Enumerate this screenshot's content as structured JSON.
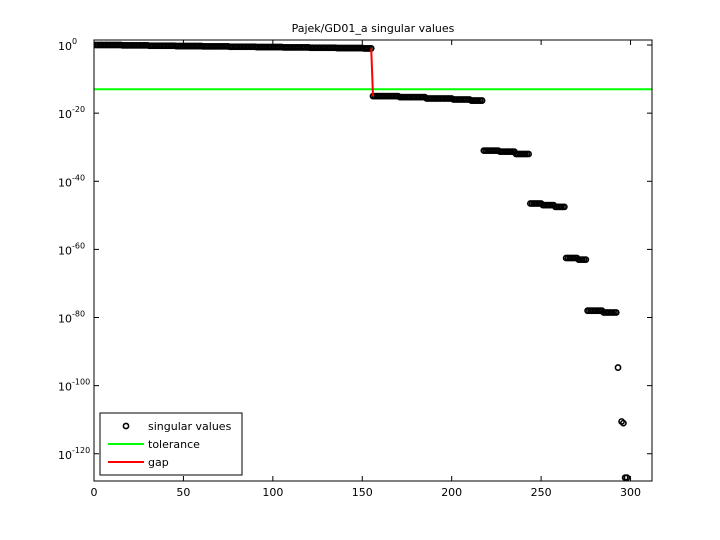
{
  "chart_data": {
    "type": "scatter",
    "title": "Pajek/GD01_a singular values",
    "xlim": [
      0,
      312
    ],
    "xticks": [
      0,
      50,
      100,
      150,
      200,
      250,
      300
    ],
    "ylim": [
      1e-128,
      30
    ],
    "log_y": true,
    "yticks": [
      {
        "value": 1,
        "label": "10",
        "exponent": "0"
      },
      {
        "value": 1e-20,
        "label": "10",
        "exponent": "-20"
      },
      {
        "value": 1e-40,
        "label": "10",
        "exponent": "-40"
      },
      {
        "value": 1e-60,
        "label": "10",
        "exponent": "-60"
      },
      {
        "value": 1e-80,
        "label": "10",
        "exponent": "-80"
      },
      {
        "value": 1e-100,
        "label": "10",
        "exponent": "-100"
      },
      {
        "value": 1e-120,
        "label": "10",
        "exponent": "-120"
      }
    ],
    "legend": "lower left",
    "series": [
      {
        "name": "singular values",
        "color": "#000000",
        "marker": "circle",
        "x": [
          1,
          2,
          3,
          4,
          5,
          6,
          7,
          8,
          9,
          10,
          11,
          12,
          13,
          14,
          15,
          16,
          17,
          18,
          19,
          20,
          21,
          22,
          23,
          24,
          25,
          26,
          27,
          28,
          29,
          30,
          31,
          32,
          33,
          34,
          35,
          36,
          37,
          38,
          39,
          40,
          41,
          42,
          43,
          44,
          45,
          46,
          47,
          48,
          49,
          50,
          51,
          52,
          53,
          54,
          55,
          56,
          57,
          58,
          59,
          60,
          61,
          62,
          63,
          64,
          65,
          66,
          67,
          68,
          69,
          70,
          71,
          72,
          73,
          74,
          75,
          76,
          77,
          78,
          79,
          80,
          81,
          82,
          83,
          84,
          85,
          86,
          87,
          88,
          89,
          90,
          91,
          92,
          93,
          94,
          95,
          96,
          97,
          98,
          99,
          100,
          101,
          102,
          103,
          104,
          105,
          106,
          107,
          108,
          109,
          110,
          111,
          112,
          113,
          114,
          115,
          116,
          117,
          118,
          119,
          120,
          121,
          122,
          123,
          124,
          125,
          126,
          127,
          128,
          129,
          130,
          131,
          132,
          133,
          134,
          135,
          136,
          137,
          138,
          139,
          140,
          141,
          142,
          143,
          144,
          145,
          146,
          147,
          148,
          149,
          150,
          151,
          152,
          153,
          154,
          155,
          156,
          157,
          158,
          159,
          160,
          161,
          162,
          163,
          164,
          165,
          166,
          167,
          168,
          169,
          170,
          171,
          172,
          173,
          174,
          175,
          176,
          177,
          178,
          179,
          180,
          181,
          182,
          183,
          184,
          185,
          186,
          187,
          188,
          189,
          190,
          191,
          192,
          193,
          194,
          195,
          196,
          197,
          198,
          199,
          200,
          201,
          202,
          203,
          204,
          205,
          206,
          207,
          208,
          209,
          210,
          211,
          212,
          213,
          214,
          215,
          216,
          217,
          218,
          219,
          220,
          221,
          222,
          223,
          224,
          225,
          226,
          227,
          228,
          229,
          230,
          231,
          232,
          233,
          234,
          235,
          236,
          237,
          238,
          239,
          240,
          241,
          242,
          243,
          244,
          245,
          246,
          247,
          248,
          249,
          250,
          251,
          252,
          253,
          254,
          255,
          256,
          257,
          258,
          259,
          260,
          261,
          262,
          263,
          264,
          265,
          266,
          267,
          268,
          269,
          270,
          271,
          272,
          273,
          274,
          275,
          276,
          277,
          278,
          279,
          280,
          281,
          282,
          283,
          284,
          285,
          286,
          287,
          288,
          289,
          290,
          291,
          292,
          293,
          295,
          296,
          297,
          298
        ],
        "values": [
          1,
          1,
          1,
          1,
          1,
          1,
          1,
          1,
          1,
          1,
          1,
          1,
          1,
          1,
          1,
          0.8,
          0.8,
          0.8,
          0.8,
          0.8,
          0.8,
          0.8,
          0.8,
          0.8,
          0.8,
          0.8,
          0.8,
          0.8,
          0.8,
          0.8,
          0.63,
          0.63,
          0.63,
          0.63,
          0.63,
          0.63,
          0.63,
          0.63,
          0.63,
          0.63,
          0.63,
          0.63,
          0.63,
          0.63,
          0.63,
          0.5,
          0.5,
          0.5,
          0.5,
          0.5,
          0.5,
          0.5,
          0.5,
          0.5,
          0.5,
          0.5,
          0.5,
          0.5,
          0.5,
          0.5,
          0.4,
          0.4,
          0.4,
          0.4,
          0.4,
          0.4,
          0.4,
          0.4,
          0.4,
          0.4,
          0.4,
          0.4,
          0.4,
          0.4,
          0.4,
          0.32,
          0.32,
          0.32,
          0.32,
          0.32,
          0.32,
          0.32,
          0.32,
          0.32,
          0.32,
          0.32,
          0.32,
          0.32,
          0.32,
          0.32,
          0.25,
          0.25,
          0.25,
          0.25,
          0.25,
          0.25,
          0.25,
          0.25,
          0.25,
          0.25,
          0.25,
          0.25,
          0.25,
          0.25,
          0.25,
          0.2,
          0.2,
          0.2,
          0.2,
          0.2,
          0.2,
          0.2,
          0.2,
          0.2,
          0.2,
          0.2,
          0.2,
          0.2,
          0.2,
          0.2,
          0.16,
          0.16,
          0.16,
          0.16,
          0.16,
          0.16,
          0.16,
          0.16,
          0.16,
          0.16,
          0.16,
          0.16,
          0.16,
          0.16,
          0.16,
          0.13,
          0.13,
          0.13,
          0.13,
          0.13,
          0.13,
          0.13,
          0.13,
          0.13,
          0.13,
          0.13,
          0.13,
          0.13,
          0.13,
          0.13,
          0.1,
          0.1,
          0.1,
          0.1,
          0.1,
          1e-15,
          1e-15,
          1e-15,
          1e-15,
          1e-15,
          1e-15,
          1e-15,
          1e-15,
          1e-15,
          1e-15,
          1e-15,
          1e-15,
          1e-15,
          1e-15,
          1e-15,
          5e-16,
          5e-16,
          5e-16,
          5e-16,
          5e-16,
          5e-16,
          5e-16,
          5e-16,
          5e-16,
          5e-16,
          5e-16,
          5e-16,
          5e-16,
          5e-16,
          5e-16,
          2e-16,
          2e-16,
          2e-16,
          2e-16,
          2e-16,
          2e-16,
          2e-16,
          2e-16,
          2e-16,
          2e-16,
          2e-16,
          2e-16,
          2e-16,
          2e-16,
          2e-16,
          1e-16,
          1e-16,
          1e-16,
          1e-16,
          1e-16,
          1e-16,
          1e-16,
          1e-16,
          1e-16,
          1e-16,
          5e-17,
          5e-17,
          5e-17,
          5e-17,
          5e-17,
          5e-17,
          5e-17,
          1e-31,
          1e-31,
          1e-31,
          1e-31,
          1e-31,
          1e-31,
          1e-31,
          1e-31,
          1e-31,
          5e-32,
          5e-32,
          5e-32,
          5e-32,
          5e-32,
          5e-32,
          5e-32,
          5e-32,
          5e-32,
          1e-32,
          1e-32,
          1e-32,
          1e-32,
          1e-32,
          1e-32,
          1e-32,
          1e-32,
          3e-47,
          3e-47,
          3e-47,
          3e-47,
          3e-47,
          3e-47,
          3e-47,
          1e-47,
          1e-47,
          1e-47,
          1e-47,
          1e-47,
          1e-47,
          1e-47,
          3e-48,
          3e-48,
          3e-48,
          3e-48,
          3e-48,
          3e-48,
          3e-63,
          3e-63,
          3e-63,
          3e-63,
          3e-63,
          3e-63,
          3e-63,
          1e-63,
          1e-63,
          1e-63,
          1e-63,
          1e-63,
          1e-78,
          1e-78,
          1e-78,
          1e-78,
          1e-78,
          1e-78,
          1e-78,
          1e-78,
          1e-78,
          3e-79,
          3e-79,
          3e-79,
          3e-79,
          3e-79,
          3e-79,
          3e-79,
          3e-79,
          2e-95,
          3e-111,
          1e-111,
          1e-127,
          1e-127
        ]
      },
      {
        "name": "tolerance",
        "color": "#00ff00",
        "marker": "hline",
        "values": [
          1e-13
        ]
      },
      {
        "name": "gap",
        "color": "#ff0000",
        "marker": "line",
        "x": [
          155,
          156
        ],
        "values": [
          0.1,
          1e-15
        ]
      }
    ]
  }
}
